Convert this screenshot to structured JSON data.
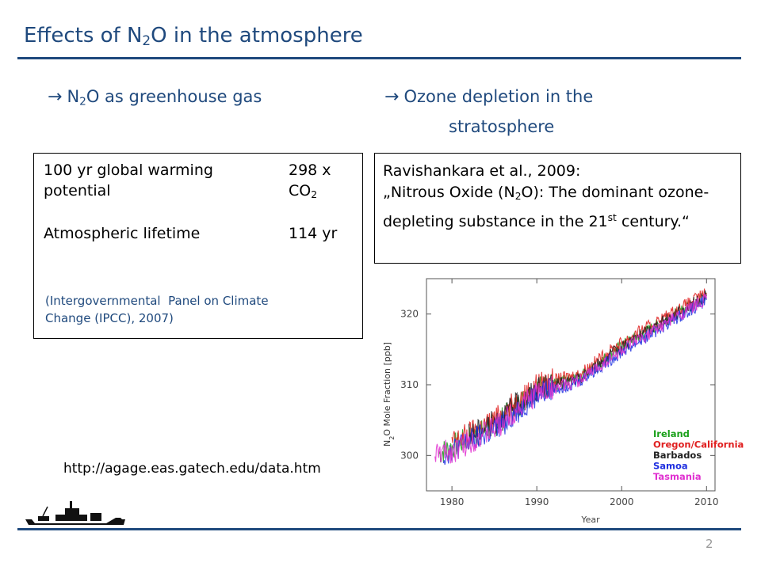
{
  "slide": {
    "title_pre": "Effects of N",
    "title_sub": "2",
    "title_post": "O in the atmosphere",
    "page_number": "2",
    "source_url": "http://agage.eas.gatech.edu/data.htm"
  },
  "left": {
    "arrow": "→",
    "heading_pre": "N",
    "heading_sub": "2",
    "heading_post": "O as greenhouse gas",
    "gwp_label_line1": "100 yr global warming",
    "gwp_label_line2": "potential",
    "gwp_value_line1": "298 x",
    "gwp_value_line2": "CO",
    "gwp_value_sub": "2",
    "lifetime_label": "Atmospheric lifetime",
    "lifetime_value": "114 yr",
    "ipcc_line1": "(Intergovernmental  Panel on Climate",
    "ipcc_line2": "Change (IPCC), 2007)"
  },
  "right": {
    "arrow": "→",
    "heading_line1": "Ozone depletion in the",
    "heading_line2": "stratosphere",
    "citation": "Ravishankara et al., 2009:",
    "quote_pre": "„Nitrous Oxide (N",
    "quote_sub": "2",
    "quote_mid": "O): The dominant ozone-depleting substance in the 21",
    "quote_sup": "st",
    "quote_post": " century.“"
  },
  "chart_data": {
    "type": "line",
    "title": "",
    "xlabel": "Year",
    "ylabel_pre": "N",
    "ylabel_sub": "2",
    "ylabel_post": "O Mole Fraction [ppb]",
    "xlim": [
      1977,
      2011
    ],
    "ylim": [
      295,
      325
    ],
    "x_ticks": [
      1980,
      1990,
      2000,
      2010
    ],
    "y_ticks": [
      300,
      310,
      320
    ],
    "legend_position": "lower-right",
    "series": [
      {
        "name": "Ireland",
        "color": "#1aa01a",
        "x": [
          1978.5,
          1980,
          1985,
          1990,
          1995,
          2000,
          2005,
          2010
        ],
        "y": [
          300.3,
          301.2,
          304.2,
          309.5,
          311.0,
          315.5,
          319.0,
          322.5
        ]
      },
      {
        "name": "Oregon/California",
        "color": "#e02020",
        "x": [
          1980,
          1985,
          1990,
          1995,
          2000,
          2005,
          2010
        ],
        "y": [
          301.8,
          305.0,
          310.0,
          311.5,
          316.0,
          319.5,
          323.0
        ]
      },
      {
        "name": "Barbados",
        "color": "#222222",
        "x": [
          1982,
          1985,
          1990,
          1995,
          2000,
          2005,
          2010
        ],
        "y": [
          302.8,
          304.7,
          309.3,
          310.8,
          315.4,
          319.0,
          322.6
        ]
      },
      {
        "name": "Samoa",
        "color": "#2030e0",
        "x": [
          1979,
          1980,
          1985,
          1990,
          1995,
          2000,
          2005,
          2010
        ],
        "y": [
          300.0,
          300.8,
          303.5,
          308.6,
          310.5,
          314.6,
          318.3,
          322.0
        ]
      },
      {
        "name": "Tasmania",
        "color": "#e030d0",
        "x": [
          1978,
          1980,
          1985,
          1990,
          1995,
          2000,
          2005,
          2010
        ],
        "y": [
          300.1,
          300.6,
          303.8,
          308.8,
          310.6,
          314.8,
          318.5,
          322.2
        ]
      }
    ]
  }
}
